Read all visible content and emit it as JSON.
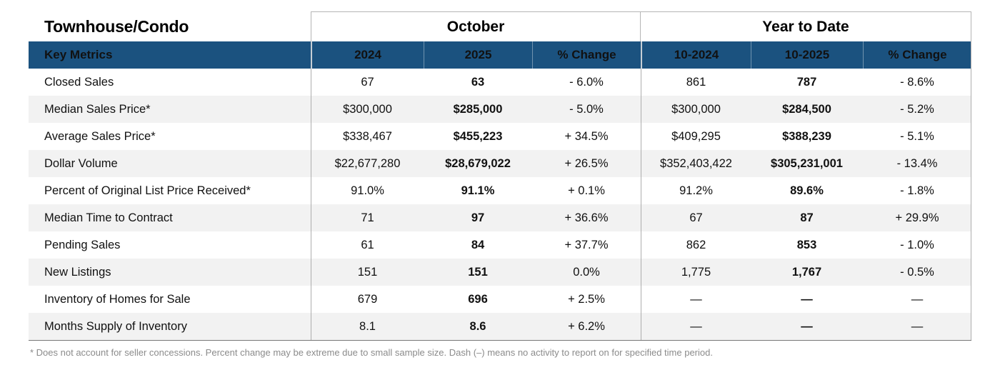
{
  "title": "Townhouse/Condo",
  "sections": {
    "october": "October",
    "year_to_date": "Year to Date"
  },
  "columns": {
    "key_metrics": "Key Metrics",
    "oct_2024": "2024",
    "oct_2025": "2025",
    "oct_change": "% Change",
    "ytd_2024": "10-2024",
    "ytd_2025": "10-2025",
    "ytd_change": "% Change"
  },
  "rows": [
    {
      "metric": "Closed Sales",
      "oct_2024": "67",
      "oct_2025": "63",
      "oct_change": "- 6.0%",
      "ytd_2024": "861",
      "ytd_2025": "787",
      "ytd_change": "- 8.6%"
    },
    {
      "metric": "Median Sales Price*",
      "oct_2024": "$300,000",
      "oct_2025": "$285,000",
      "oct_change": "- 5.0%",
      "ytd_2024": "$300,000",
      "ytd_2025": "$284,500",
      "ytd_change": "- 5.2%"
    },
    {
      "metric": "Average Sales Price*",
      "oct_2024": "$338,467",
      "oct_2025": "$455,223",
      "oct_change": "+ 34.5%",
      "ytd_2024": "$409,295",
      "ytd_2025": "$388,239",
      "ytd_change": "- 5.1%"
    },
    {
      "metric": "Dollar Volume",
      "oct_2024": "$22,677,280",
      "oct_2025": "$28,679,022",
      "oct_change": "+ 26.5%",
      "ytd_2024": "$352,403,422",
      "ytd_2025": "$305,231,001",
      "ytd_change": "- 13.4%"
    },
    {
      "metric": "Percent of Original List Price Received*",
      "oct_2024": "91.0%",
      "oct_2025": "91.1%",
      "oct_change": "+ 0.1%",
      "ytd_2024": "91.2%",
      "ytd_2025": "89.6%",
      "ytd_change": "- 1.8%"
    },
    {
      "metric": "Median Time to Contract",
      "oct_2024": "71",
      "oct_2025": "97",
      "oct_change": "+ 36.6%",
      "ytd_2024": "67",
      "ytd_2025": "87",
      "ytd_change": "+ 29.9%"
    },
    {
      "metric": "Pending Sales",
      "oct_2024": "61",
      "oct_2025": "84",
      "oct_change": "+ 37.7%",
      "ytd_2024": "862",
      "ytd_2025": "853",
      "ytd_change": "- 1.0%"
    },
    {
      "metric": "New Listings",
      "oct_2024": "151",
      "oct_2025": "151",
      "oct_change": "0.0%",
      "ytd_2024": "1,775",
      "ytd_2025": "1,767",
      "ytd_change": "- 0.5%"
    },
    {
      "metric": "Inventory of Homes for Sale",
      "oct_2024": "679",
      "oct_2025": "696",
      "oct_change": "+ 2.5%",
      "ytd_2024": "—",
      "ytd_2025": "—",
      "ytd_change": "—"
    },
    {
      "metric": "Months Supply of Inventory",
      "oct_2024": "8.1",
      "oct_2025": "8.6",
      "oct_change": "+ 6.2%",
      "ytd_2024": "—",
      "ytd_2025": "—",
      "ytd_change": "—"
    }
  ],
  "footnote": "* Does not account for seller concessions. Percent change may be extreme due to small sample size. Dash (–) means no activity to report on for specified time period.",
  "colors": {
    "header_blue": "#1b527f",
    "row_alt": "#f2f2f2",
    "border": "#aeaeae",
    "footnote_gray": "#8b8b8b"
  }
}
